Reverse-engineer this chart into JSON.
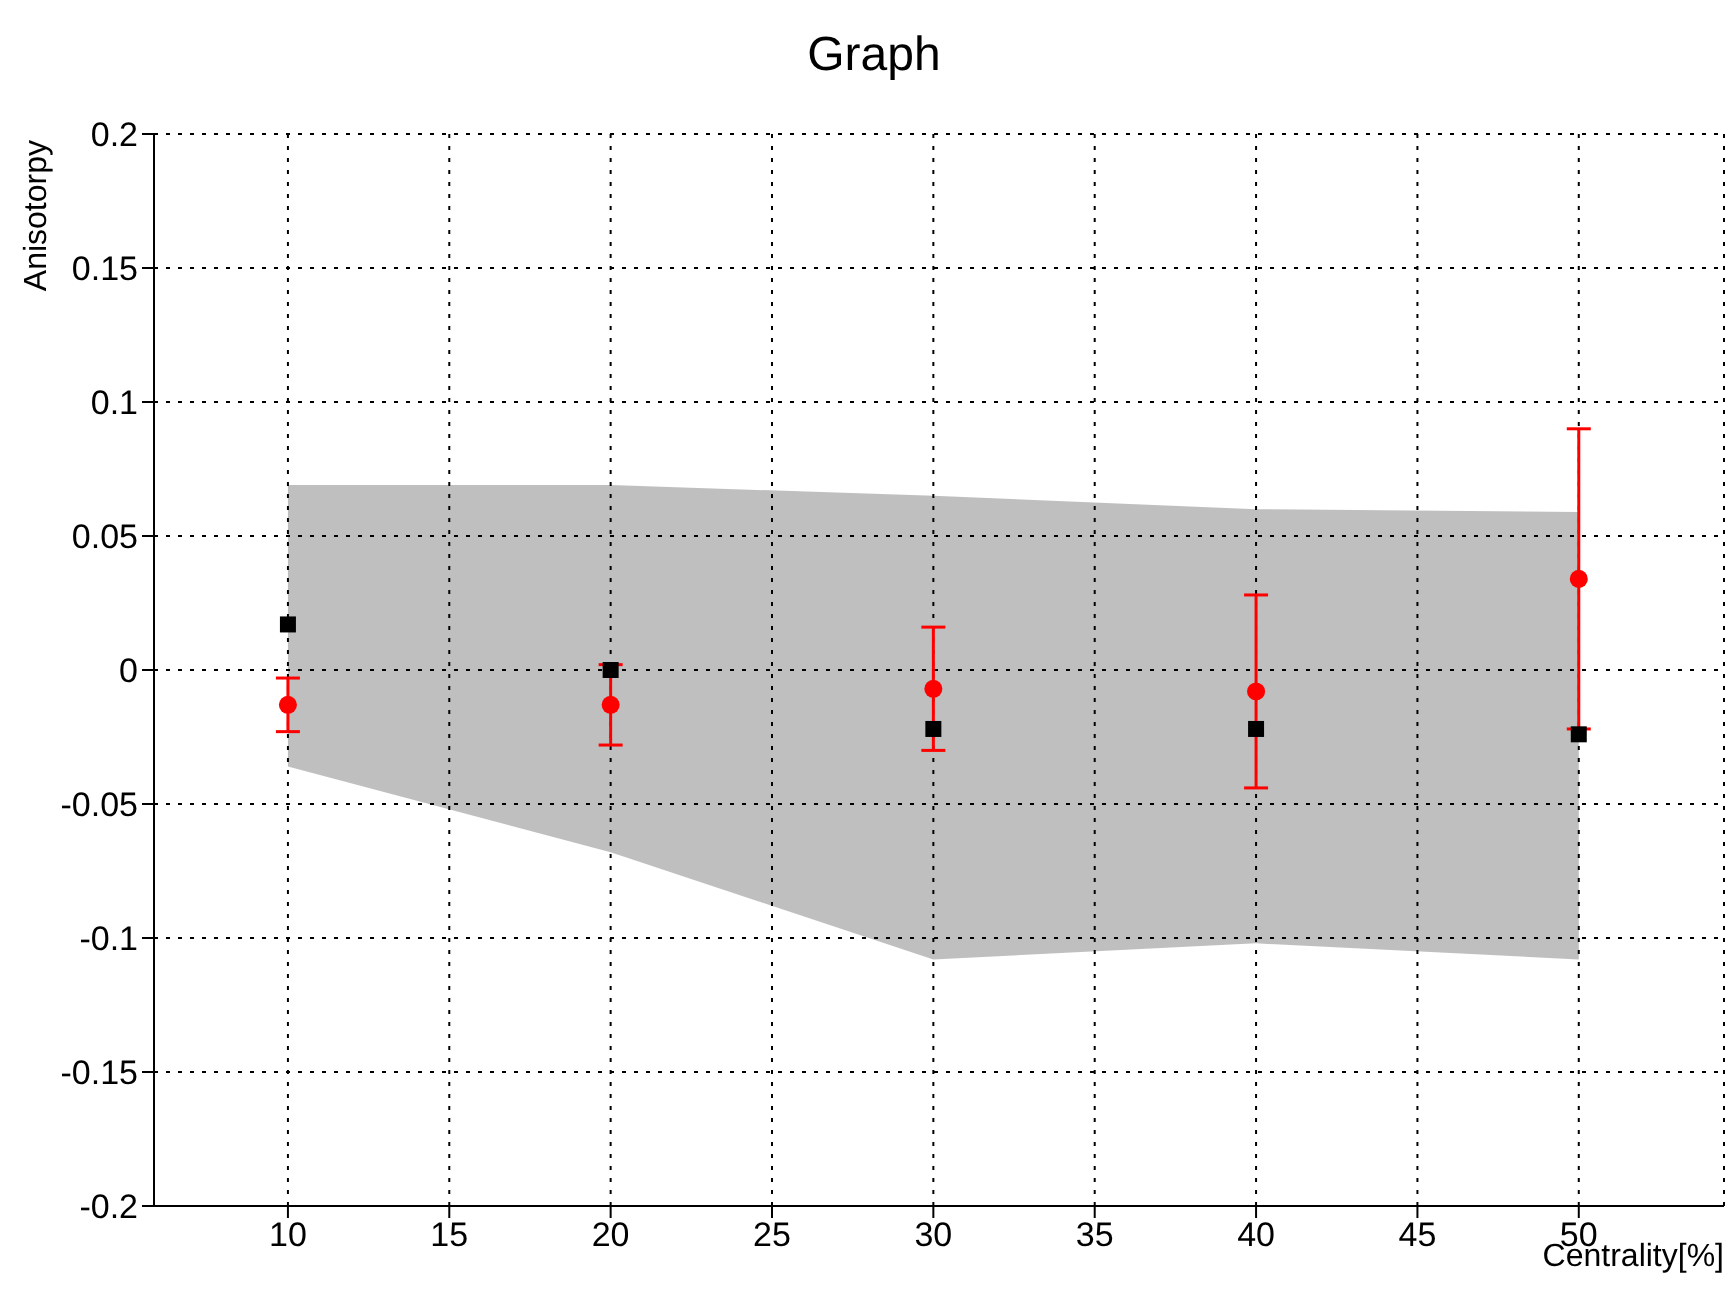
{
  "chart_data": {
    "type": "scatter",
    "title": "Graph",
    "xlabel": "Centrality[%]",
    "ylabel": "Anisotorpy",
    "x": [
      10,
      20,
      30,
      40,
      50
    ],
    "series": [
      {
        "marker": "square",
        "color": "#000000",
        "values": [
          0.017,
          0.0,
          -0.022,
          -0.022,
          -0.024
        ],
        "lower": [
          -0.036,
          -0.068,
          -0.108,
          -0.102,
          -0.108
        ],
        "upper": [
          0.069,
          0.069,
          0.065,
          0.06,
          0.059
        ]
      },
      {
        "marker": "circle",
        "color": "#ff0000",
        "values": [
          -0.013,
          -0.013,
          -0.007,
          -0.008,
          0.034
        ],
        "errors": [
          [
            -0.023,
            -0.003
          ],
          [
            -0.028,
            0.002
          ],
          [
            -0.03,
            0.016
          ],
          [
            -0.044,
            0.028
          ],
          [
            -0.022,
            0.09
          ]
        ]
      }
    ],
    "xlim": [
      5.85,
      54.5
    ],
    "xticks": [
      10,
      15,
      20,
      25,
      30,
      35,
      40,
      45,
      50
    ],
    "ylim": [
      -0.2,
      0.2
    ],
    "yticks": [
      -0.2,
      -0.15,
      -0.1,
      -0.05,
      0,
      0.05,
      0.1,
      0.15,
      0.2
    ],
    "grid": true
  }
}
